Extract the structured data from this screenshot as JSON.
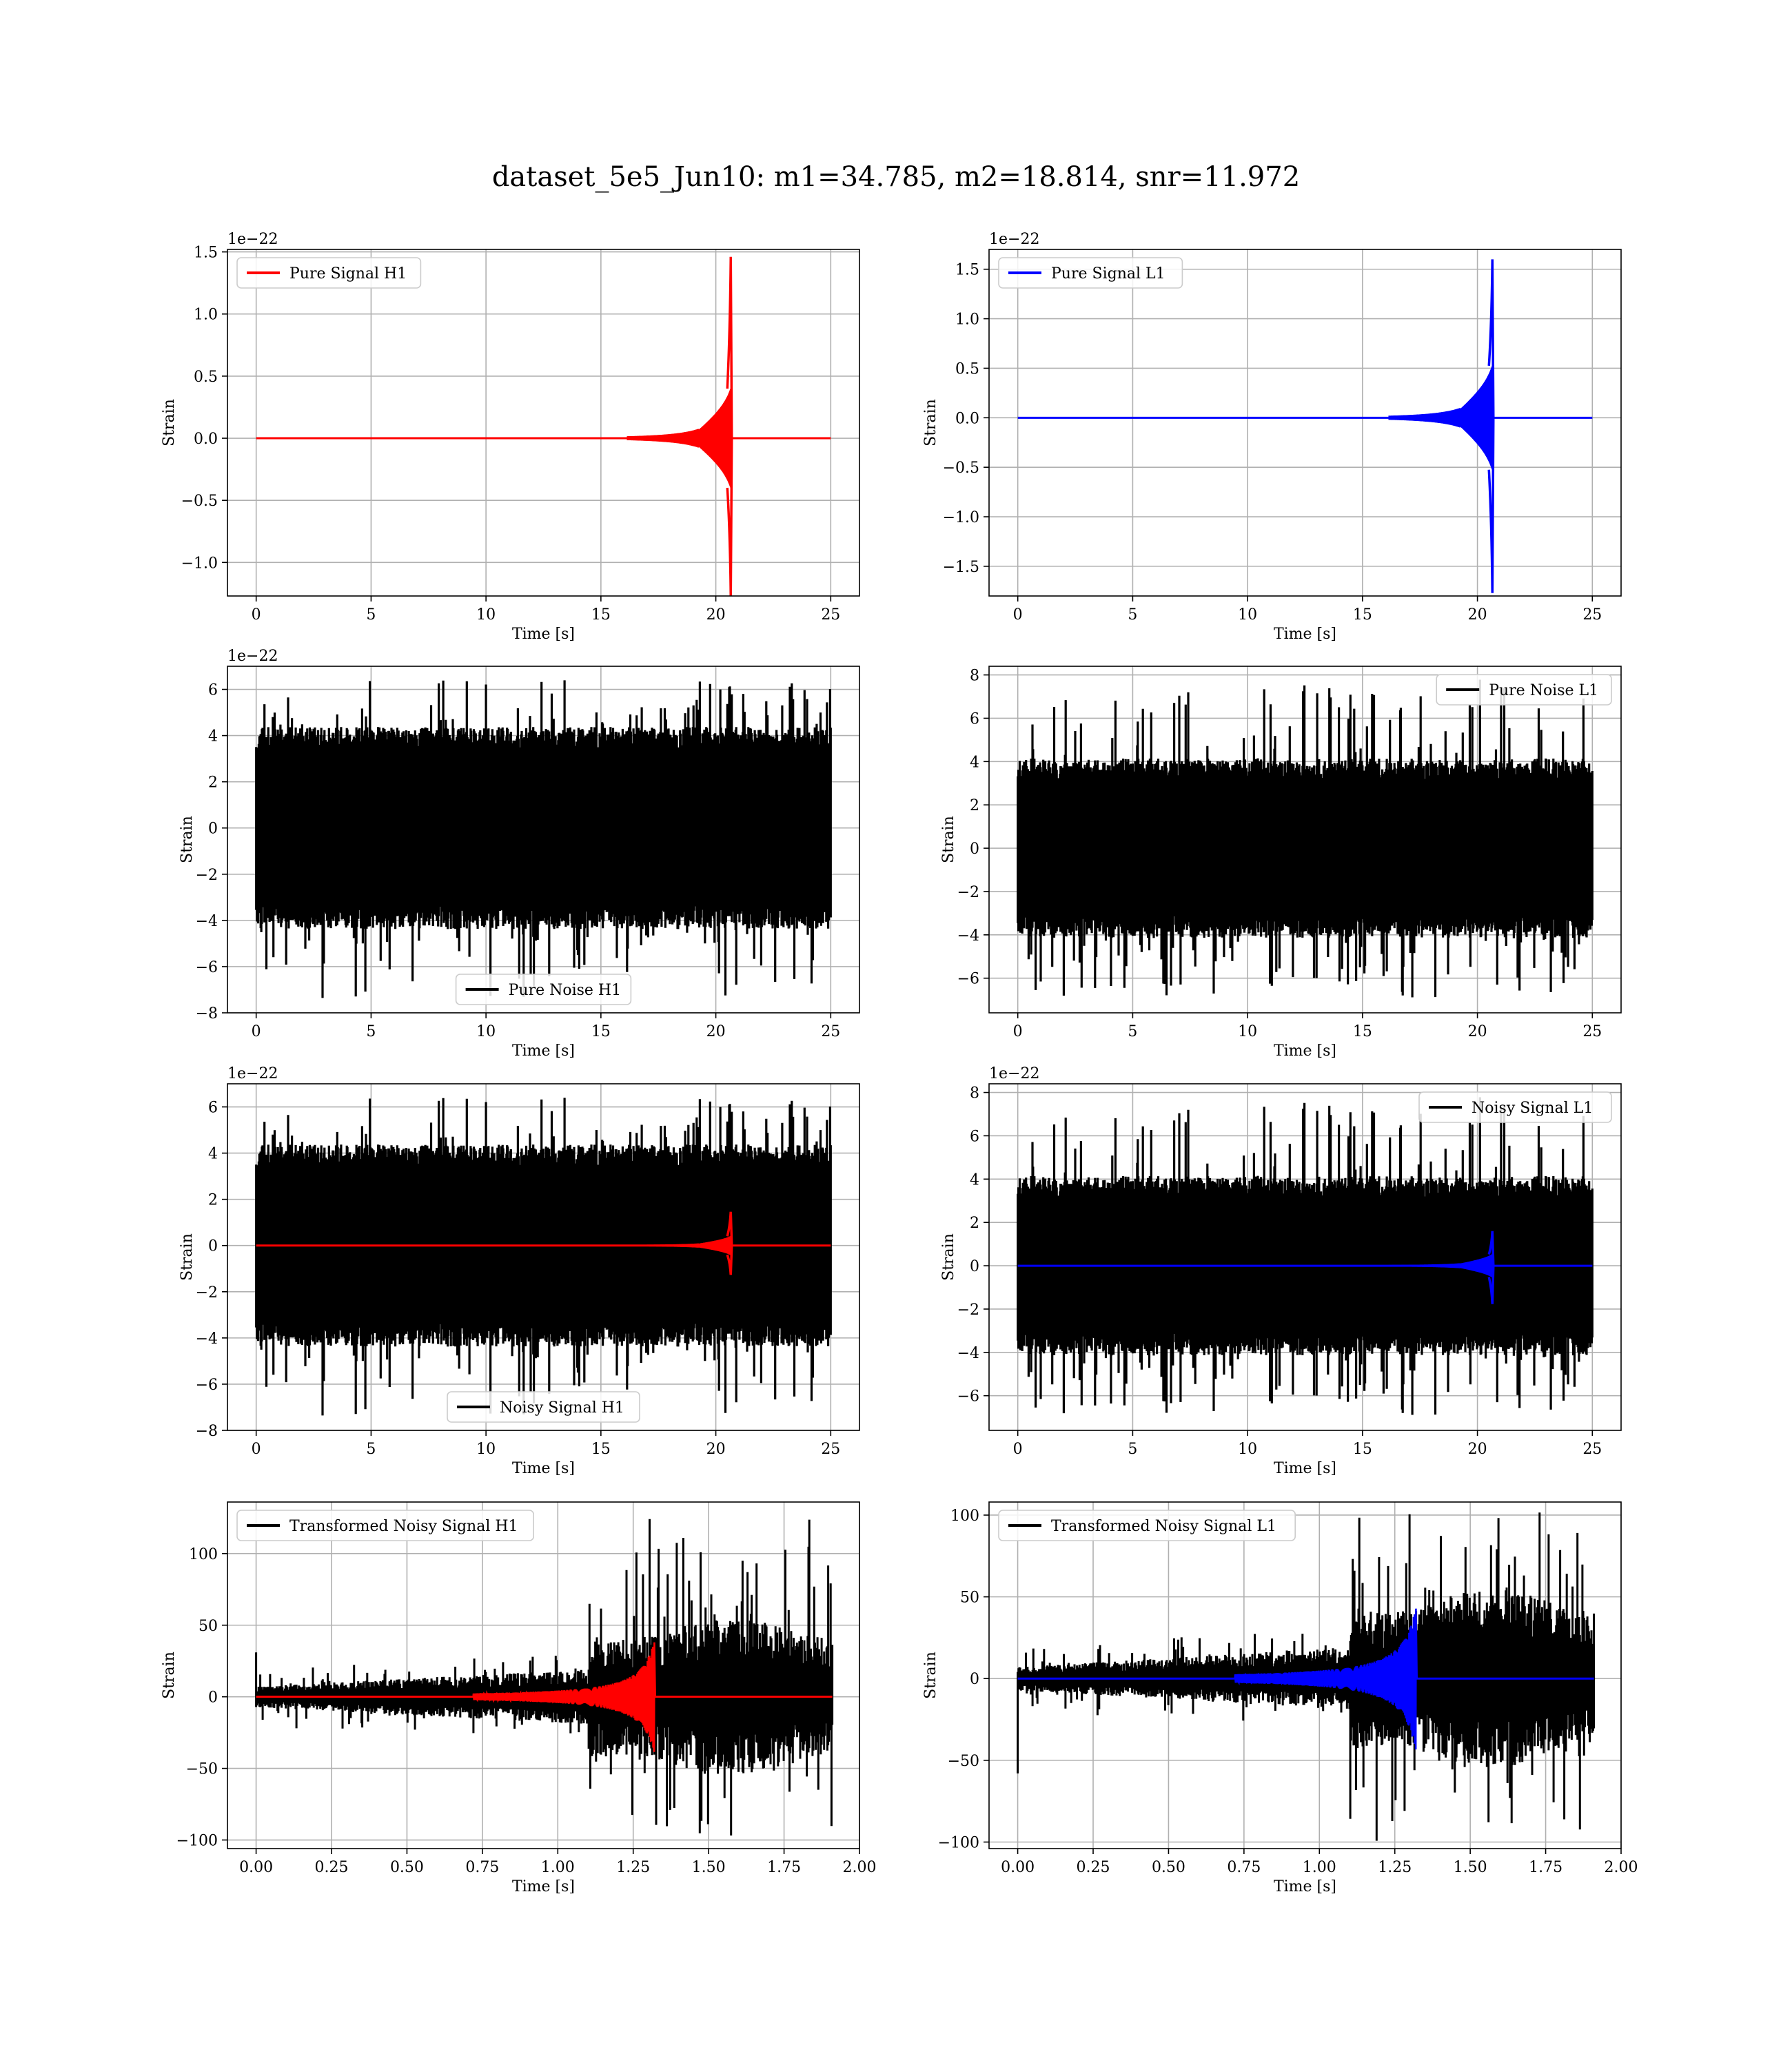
{
  "figure_title": "dataset_5e5_Jun10: m1=34.785, m2=18.814, snr=11.972",
  "colors": {
    "h1": "#ff0000",
    "l1": "#0000ff",
    "noise": "#000000"
  },
  "chart_data": [
    {
      "id": "pure-signal-h1",
      "type": "line",
      "xlabel": "Time [s]",
      "ylabel": "Strain",
      "offset_text": "1e−22",
      "xlim": [
        -1.25,
        26.25
      ],
      "ylim": [
        -1.27,
        1.52
      ],
      "xticks": [
        0,
        5,
        10,
        15,
        20,
        25
      ],
      "xtick_labels": [
        "0",
        "5",
        "10",
        "15",
        "20",
        "25"
      ],
      "yticks": [
        -1.0,
        -0.5,
        0.0,
        0.5,
        1.0,
        1.5
      ],
      "ytick_labels": [
        "−1.0",
        "−0.5",
        "0.0",
        "0.5",
        "1.0",
        "1.5"
      ],
      "legend": {
        "loc": "upper-left",
        "entries": [
          {
            "label": "Pure Signal H1",
            "color": "#ff0000"
          }
        ]
      },
      "series": [
        {
          "name": "Pure Signal H1",
          "kind": "chirp",
          "color": "#ff0000",
          "t_start": 0,
          "t_end": 25,
          "t_merger": 20.65,
          "peak_pos": 1.46,
          "peak_neg": -1.27,
          "base_amp": 0.38
        }
      ]
    },
    {
      "id": "pure-signal-l1",
      "type": "line",
      "xlabel": "Time [s]",
      "ylabel": "Strain",
      "offset_text": "1e−22",
      "xlim": [
        -1.25,
        26.25
      ],
      "ylim": [
        -1.8,
        1.7
      ],
      "xticks": [
        0,
        5,
        10,
        15,
        20,
        25
      ],
      "xtick_labels": [
        "0",
        "5",
        "10",
        "15",
        "20",
        "25"
      ],
      "yticks": [
        -1.5,
        -1.0,
        -0.5,
        0.0,
        0.5,
        1.0,
        1.5
      ],
      "ytick_labels": [
        "−1.5",
        "−1.0",
        "−0.5",
        "0.0",
        "0.5",
        "1.0",
        "1.5"
      ],
      "legend": {
        "loc": "upper-left",
        "entries": [
          {
            "label": "Pure Signal L1",
            "color": "#0000ff"
          }
        ]
      },
      "series": [
        {
          "name": "Pure Signal L1",
          "kind": "chirp",
          "color": "#0000ff",
          "t_start": 0,
          "t_end": 25,
          "t_merger": 20.65,
          "peak_pos": 1.6,
          "peak_neg": -1.77,
          "base_amp": 0.5
        }
      ]
    },
    {
      "id": "pure-noise-h1",
      "type": "line",
      "xlabel": "Time [s]",
      "ylabel": "Strain",
      "offset_text": "1e−22",
      "xlim": [
        -1.25,
        26.25
      ],
      "ylim": [
        -8.0,
        7.0
      ],
      "xticks": [
        0,
        5,
        10,
        15,
        20,
        25
      ],
      "xtick_labels": [
        "0",
        "5",
        "10",
        "15",
        "20",
        "25"
      ],
      "yticks": [
        -8,
        -6,
        -4,
        -2,
        0,
        2,
        4,
        6
      ],
      "ytick_labels": [
        "−8",
        "−6",
        "−4",
        "−2",
        "0",
        "2",
        "4",
        "6"
      ],
      "legend": {
        "loc": "lower-center",
        "entries": [
          {
            "label": "Pure Noise H1",
            "color": "#000000"
          }
        ]
      },
      "series": [
        {
          "name": "Pure Noise H1",
          "kind": "noise",
          "color": "#000000",
          "t_start": 0,
          "t_end": 25,
          "max": 6.4,
          "min": -7.4,
          "typ": 3.8,
          "seed": 11
        }
      ]
    },
    {
      "id": "pure-noise-l1",
      "type": "line",
      "xlabel": "Time [s]",
      "ylabel": "Strain",
      "offset_text": "",
      "xlim": [
        -1.25,
        26.25
      ],
      "ylim": [
        -7.6,
        8.4
      ],
      "xticks": [
        0,
        5,
        10,
        15,
        20,
        25
      ],
      "xtick_labels": [
        "0",
        "5",
        "10",
        "15",
        "20",
        "25"
      ],
      "yticks": [
        -6,
        -4,
        -2,
        0,
        2,
        4,
        6,
        8
      ],
      "ytick_labels": [
        "−6",
        "−4",
        "−2",
        "0",
        "2",
        "4",
        "6",
        "8"
      ],
      "legend": {
        "loc": "upper-right",
        "entries": [
          {
            "label": "Pure Noise L1",
            "color": "#000000"
          }
        ]
      },
      "series": [
        {
          "name": "Pure Noise L1",
          "kind": "noise",
          "color": "#000000",
          "t_start": 0,
          "t_end": 25,
          "max": 7.8,
          "min": -6.9,
          "typ": 3.6,
          "seed": 23
        }
      ]
    },
    {
      "id": "noisy-signal-h1",
      "type": "line",
      "xlabel": "Time [s]",
      "ylabel": "Strain",
      "offset_text": "1e−22",
      "xlim": [
        -1.25,
        26.25
      ],
      "ylim": [
        -8.0,
        7.0
      ],
      "xticks": [
        0,
        5,
        10,
        15,
        20,
        25
      ],
      "xtick_labels": [
        "0",
        "5",
        "10",
        "15",
        "20",
        "25"
      ],
      "yticks": [
        -8,
        -6,
        -4,
        -2,
        0,
        2,
        4,
        6
      ],
      "ytick_labels": [
        "−8",
        "−6",
        "−4",
        "−2",
        "0",
        "2",
        "4",
        "6"
      ],
      "legend": {
        "loc": "lower-center",
        "entries": [
          {
            "label": "Noisy Signal H1",
            "color": "#000000"
          }
        ]
      },
      "series": [
        {
          "name": "Noisy Signal H1",
          "kind": "noise",
          "color": "#000000",
          "t_start": 0,
          "t_end": 25,
          "max": 6.4,
          "min": -7.4,
          "typ": 3.8,
          "seed": 11
        },
        {
          "name": "",
          "kind": "chirp",
          "color": "#ff0000",
          "t_start": 0,
          "t_end": 25,
          "t_merger": 20.65,
          "peak_pos": 1.46,
          "peak_neg": -1.27,
          "base_amp": 0.38
        }
      ]
    },
    {
      "id": "noisy-signal-l1",
      "type": "line",
      "xlabel": "Time [s]",
      "ylabel": "Strain",
      "offset_text": "1e−22",
      "xlim": [
        -1.25,
        26.25
      ],
      "ylim": [
        -7.6,
        8.4
      ],
      "xticks": [
        0,
        5,
        10,
        15,
        20,
        25
      ],
      "xtick_labels": [
        "0",
        "5",
        "10",
        "15",
        "20",
        "25"
      ],
      "yticks": [
        -6,
        -4,
        -2,
        0,
        2,
        4,
        6,
        8
      ],
      "ytick_labels": [
        "−6",
        "−4",
        "−2",
        "0",
        "2",
        "4",
        "6",
        "8"
      ],
      "legend": {
        "loc": "upper-right",
        "entries": [
          {
            "label": "Noisy Signal L1",
            "color": "#000000"
          }
        ]
      },
      "series": [
        {
          "name": "Noisy Signal L1",
          "kind": "noise",
          "color": "#000000",
          "t_start": 0,
          "t_end": 25,
          "max": 7.8,
          "min": -6.9,
          "typ": 3.6,
          "seed": 23
        },
        {
          "name": "",
          "kind": "chirp",
          "color": "#0000ff",
          "t_start": 0,
          "t_end": 25,
          "t_merger": 20.65,
          "peak_pos": 1.6,
          "peak_neg": -1.77,
          "base_amp": 0.5
        }
      ]
    },
    {
      "id": "transformed-noisy-signal-h1",
      "type": "line",
      "xlabel": "Time [s]",
      "ylabel": "Strain",
      "offset_text": "",
      "xlim": [
        -0.095,
        2.0
      ],
      "ylim": [
        -106,
        136
      ],
      "xticks": [
        0.0,
        0.25,
        0.5,
        0.75,
        1.0,
        1.25,
        1.5,
        1.75,
        2.0
      ],
      "xtick_labels": [
        "0.00",
        "0.25",
        "0.50",
        "0.75",
        "1.00",
        "1.25",
        "1.50",
        "1.75",
        "2.00"
      ],
      "yticks": [
        -100,
        -50,
        0,
        50,
        100
      ],
      "ytick_labels": [
        "−100",
        "−50",
        "0",
        "50",
        "100"
      ],
      "legend": {
        "loc": "upper-left",
        "entries": [
          {
            "label": "Transformed Noisy Signal H1",
            "color": "#000000"
          }
        ]
      },
      "series": [
        {
          "name": "Transformed Noisy Signal H1",
          "kind": "tnoise",
          "color": "#000000",
          "t_start": 0,
          "t_end": 1.91,
          "max": 127,
          "min": -101,
          "seed": 41,
          "t_spike": 0.0,
          "spike": 31
        },
        {
          "name": "",
          "kind": "tchirp",
          "color": "#ff0000",
          "t_start": 0,
          "t_end": 1.91,
          "t_merger": 1.32,
          "peak": 40
        }
      ]
    },
    {
      "id": "transformed-noisy-signal-l1",
      "type": "line",
      "xlabel": "Time [s]",
      "ylabel": "Strain",
      "offset_text": "",
      "xlim": [
        -0.095,
        2.0
      ],
      "ylim": [
        -104,
        108
      ],
      "xticks": [
        0.0,
        0.25,
        0.5,
        0.75,
        1.0,
        1.25,
        1.5,
        1.75,
        2.0
      ],
      "xtick_labels": [
        "0.00",
        "0.25",
        "0.50",
        "0.75",
        "1.00",
        "1.25",
        "1.50",
        "1.75",
        "2.00"
      ],
      "yticks": [
        -100,
        -50,
        0,
        50,
        100
      ],
      "ytick_labels": [
        "−100",
        "−50",
        "0",
        "50",
        "100"
      ],
      "legend": {
        "loc": "upper-left",
        "entries": [
          {
            "label": "Transformed Noisy Signal L1",
            "color": "#000000"
          }
        ]
      },
      "series": [
        {
          "name": "Transformed Noisy Signal L1",
          "kind": "tnoise",
          "color": "#000000",
          "t_start": 0,
          "t_end": 1.91,
          "max": 103,
          "min": -100,
          "seed": 57,
          "t_spike": 0.0,
          "spike": -58
        },
        {
          "name": "",
          "kind": "tchirp",
          "color": "#0000ff",
          "t_start": 0,
          "t_end": 1.91,
          "t_merger": 1.32,
          "peak": 45
        }
      ]
    }
  ]
}
